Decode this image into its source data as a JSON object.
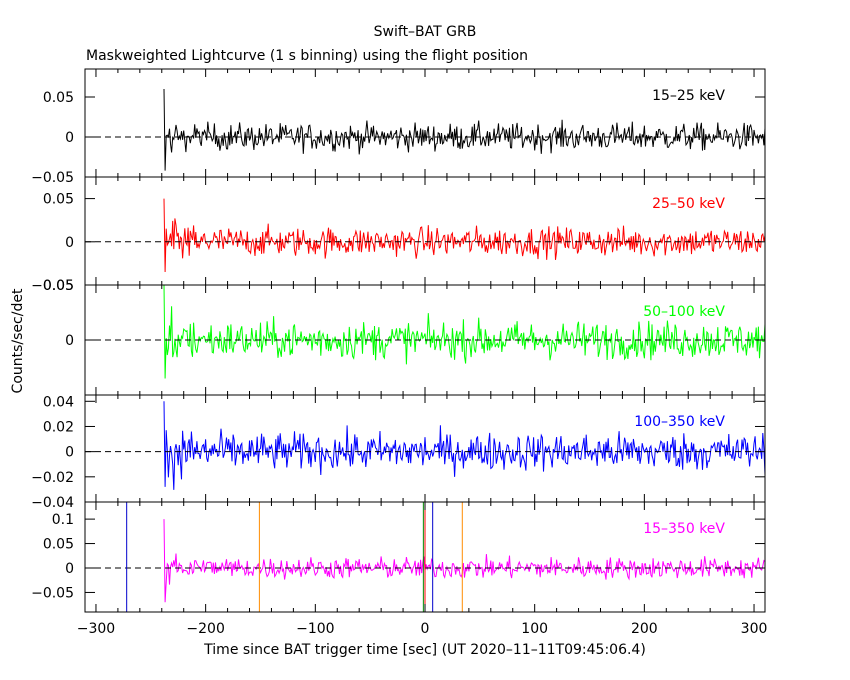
{
  "chart_data": {
    "type": "line",
    "title": "Swift–BAT GRB",
    "subtitle": "Maskweighted Lightcurve (1 s binning) using the flight position",
    "xlabel": "Time since BAT trigger time [sec] (UT 2020–11–11T09:45:06.4)",
    "ylabel": "Counts/sec/det",
    "xlim": [
      -310,
      310
    ],
    "xticks": [
      -300,
      -200,
      -100,
      0,
      100,
      200,
      300
    ],
    "xtick_labels": [
      "−300",
      "−200",
      "−100",
      "0",
      "100",
      "200",
      "300"
    ],
    "panels": [
      {
        "band": "15–25 keV",
        "color": "#000000",
        "ylim": [
          -0.05,
          0.085
        ],
        "yticks": [
          0.05,
          0,
          -0.05
        ],
        "ytick_labels": [
          "0.05",
          "0",
          "−0.05"
        ],
        "series_start": -238,
        "series_end": 310,
        "noise_sigma": 0.0085,
        "burst_peak": 0.06
      },
      {
        "band": "25–50 keV",
        "color": "#ff0000",
        "ylim": [
          -0.05,
          0.075
        ],
        "yticks": [
          0.05,
          0,
          -0.05
        ],
        "ytick_labels": [
          "0.05",
          "0",
          "−0.05"
        ],
        "series_start": -238,
        "series_end": 310,
        "noise_sigma": 0.0085,
        "burst_peak": 0.05
      },
      {
        "band": "50–100 keV",
        "color": "#00ff00",
        "ylim": [
          -0.05,
          0.05
        ],
        "yticks": [
          0.05,
          0
        ],
        "ytick_labels": [
          "0.05",
          "0"
        ],
        "series_start": -238,
        "series_end": 310,
        "noise_sigma": 0.0085,
        "burst_peak": 0.05
      },
      {
        "band": "100–350 keV",
        "color": "#0000ff",
        "ylim": [
          -0.04,
          0.045
        ],
        "yticks": [
          0.04,
          0.02,
          0,
          -0.02,
          -0.04
        ],
        "ytick_labels": [
          "0.04",
          "0.02",
          "0",
          "−0.02",
          "−0.04"
        ],
        "series_start": -238,
        "series_end": 310,
        "noise_sigma": 0.0075,
        "burst_peak": 0.04
      },
      {
        "band": "15–350 keV",
        "color": "#ff00ff",
        "ylim": [
          -0.09,
          0.135
        ],
        "yticks": [
          0.1,
          0.05,
          0,
          -0.05
        ],
        "ytick_labels": [
          "0.1",
          "0.05",
          "0",
          "−0.05"
        ],
        "series_start": -238,
        "series_end": 310,
        "noise_sigma": 0.011,
        "burst_peak": 0.1
      }
    ],
    "markers": [
      {
        "x": -272,
        "color": "#0000cc"
      },
      {
        "x": -151,
        "color": "#ff8c00"
      },
      {
        "x": -1.5,
        "color": "#008800"
      },
      {
        "x": 0,
        "color": "#ff0000"
      },
      {
        "x": 7,
        "color": "#0000cc"
      },
      {
        "x": 34,
        "color": "#ff8c00"
      }
    ]
  }
}
